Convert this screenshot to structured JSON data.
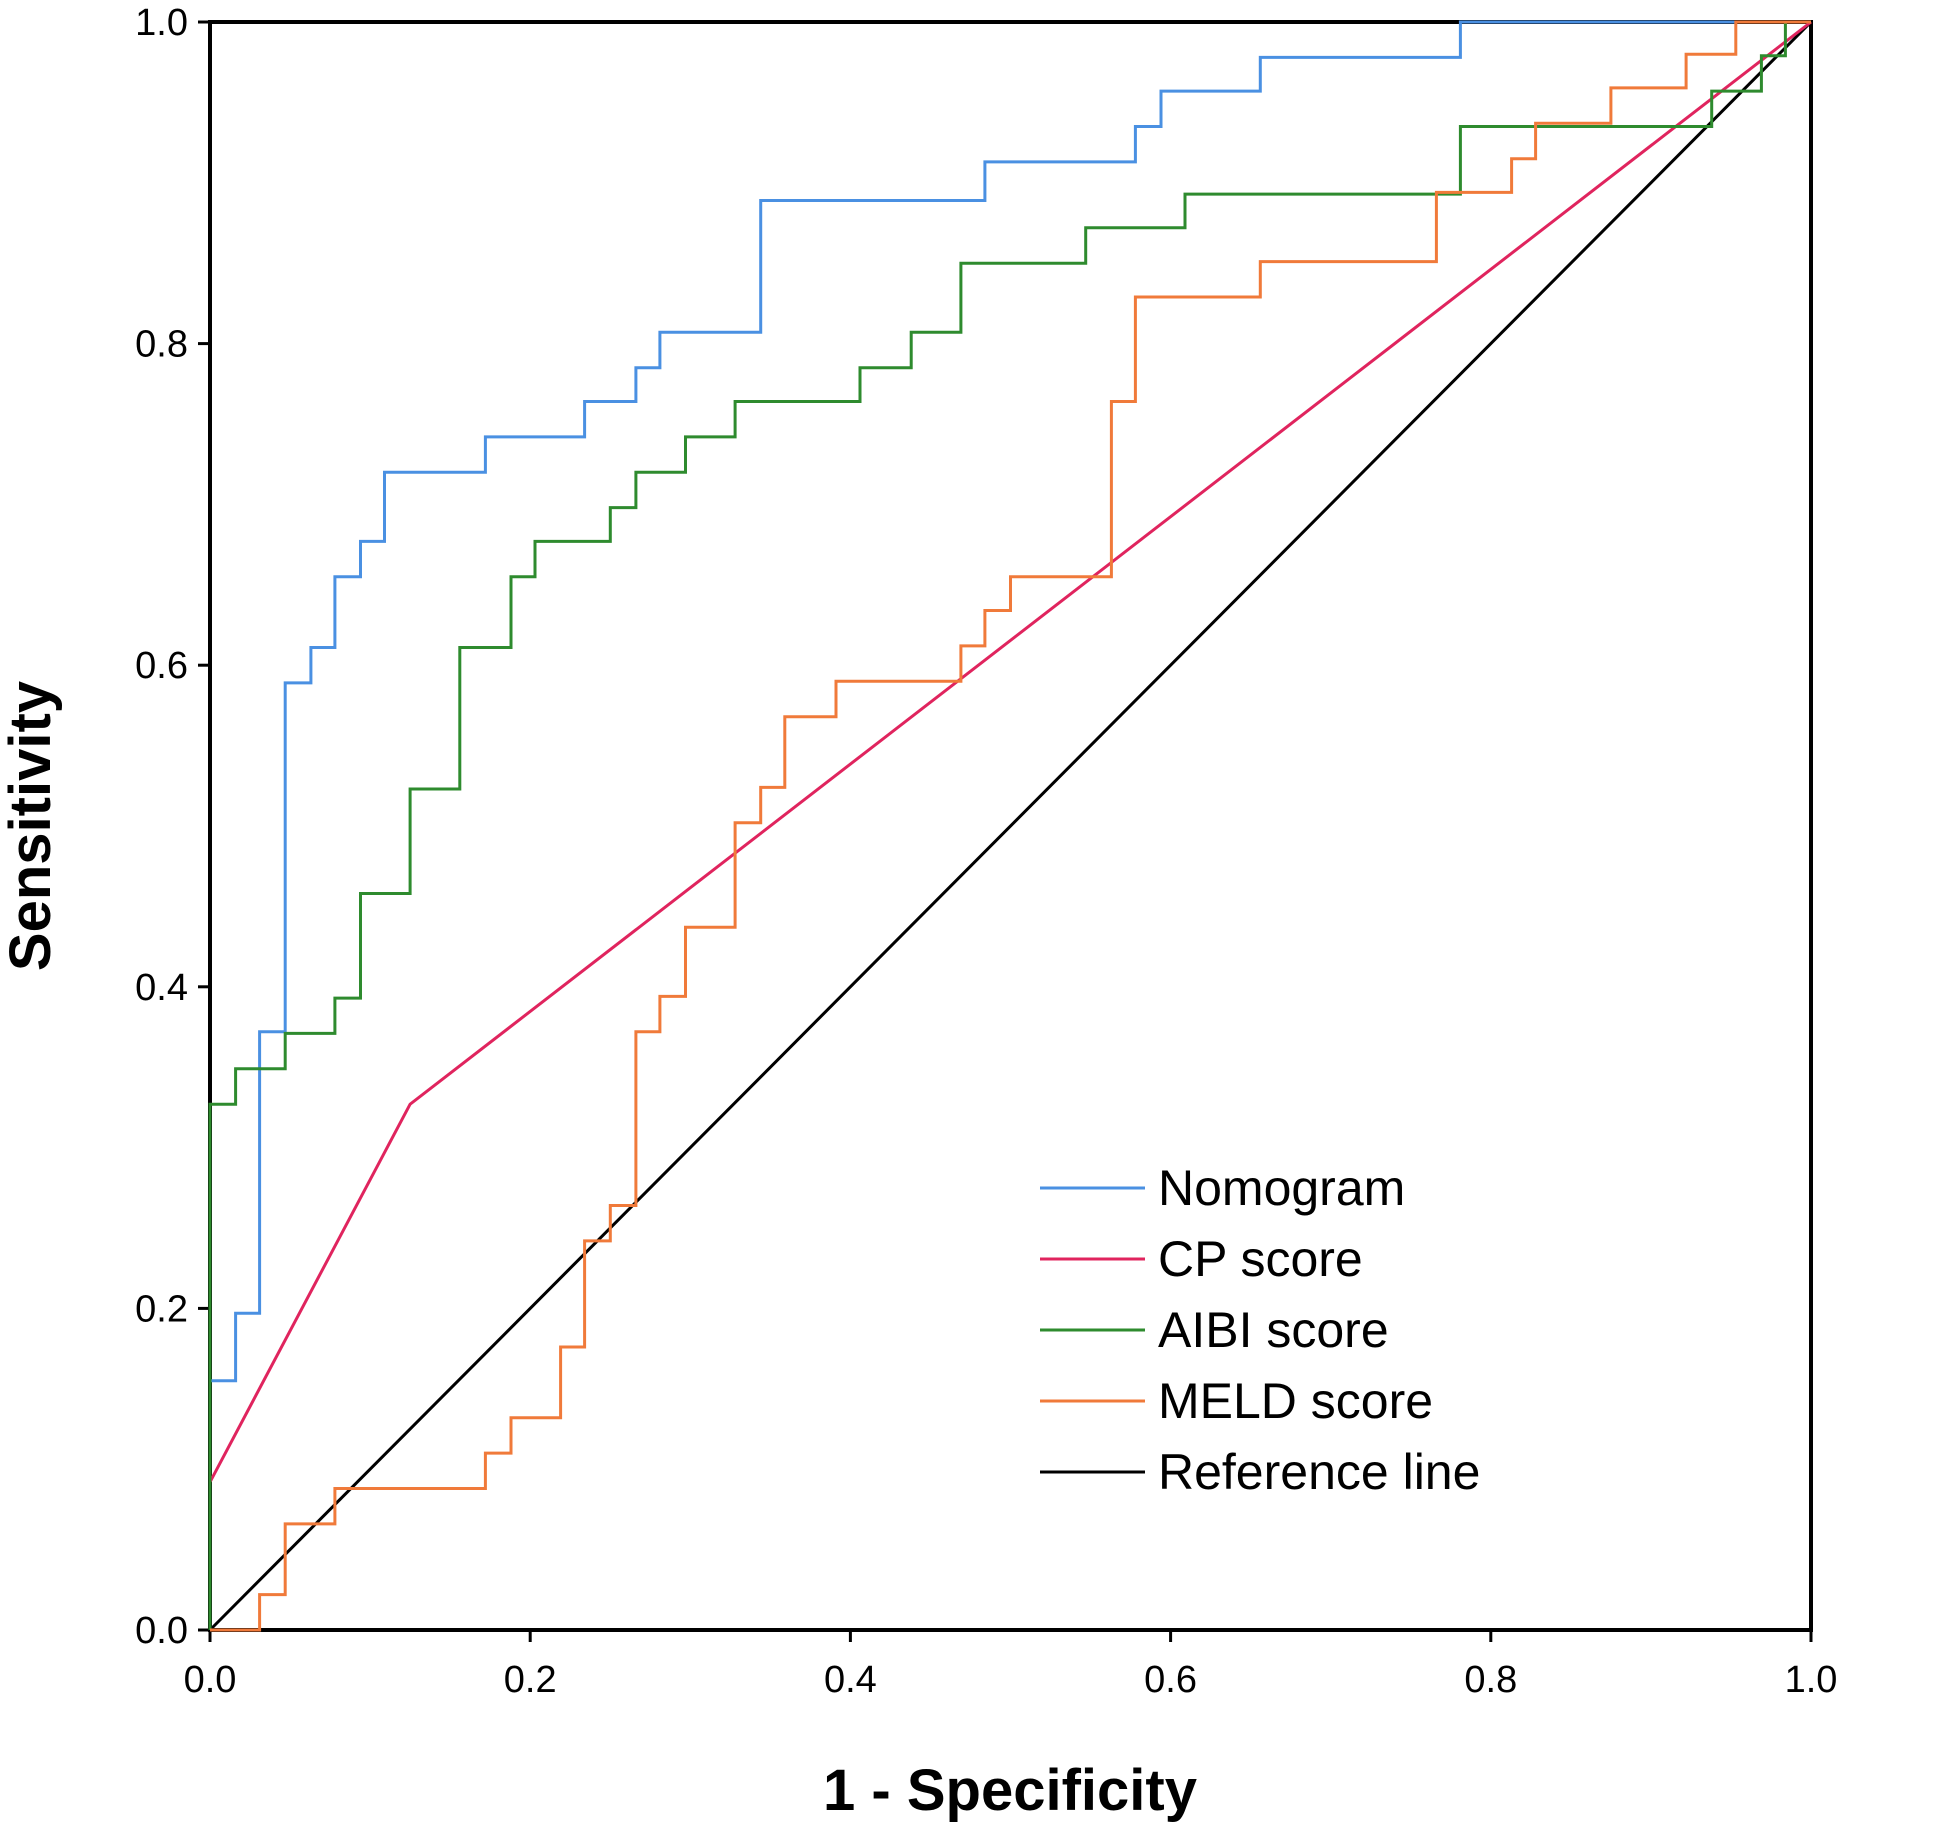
{
  "chart_data": {
    "type": "line",
    "title": "",
    "xlabel": "1 - Specificity",
    "ylabel": "Sensitivity",
    "xlim": [
      0,
      1
    ],
    "ylim": [
      0,
      1
    ],
    "xticks": [
      "0.0",
      "0.2",
      "0.4",
      "0.6",
      "0.8",
      "1.0"
    ],
    "yticks": [
      "0.0",
      "0.2",
      "0.4",
      "0.6",
      "0.8",
      "1.0"
    ],
    "grid": false,
    "legend_position": "bottom-right",
    "series": [
      {
        "name": "Nomogram",
        "color": "#4a90e2",
        "points": [
          [
            0,
            0
          ],
          [
            0,
            0.155
          ],
          [
            0.016,
            0.155
          ],
          [
            0.016,
            0.197
          ],
          [
            0.031,
            0.197
          ],
          [
            0.031,
            0.372
          ],
          [
            0.047,
            0.372
          ],
          [
            0.047,
            0.589
          ],
          [
            0.063,
            0.589
          ],
          [
            0.063,
            0.611
          ],
          [
            0.078,
            0.611
          ],
          [
            0.078,
            0.655
          ],
          [
            0.094,
            0.655
          ],
          [
            0.094,
            0.677
          ],
          [
            0.109,
            0.677
          ],
          [
            0.109,
            0.72
          ],
          [
            0.172,
            0.72
          ],
          [
            0.172,
            0.742
          ],
          [
            0.234,
            0.742
          ],
          [
            0.234,
            0.764
          ],
          [
            0.266,
            0.764
          ],
          [
            0.266,
            0.785
          ],
          [
            0.281,
            0.785
          ],
          [
            0.281,
            0.807
          ],
          [
            0.344,
            0.807
          ],
          [
            0.344,
            0.889
          ],
          [
            0.484,
            0.889
          ],
          [
            0.484,
            0.913
          ],
          [
            0.578,
            0.913
          ],
          [
            0.578,
            0.935
          ],
          [
            0.594,
            0.935
          ],
          [
            0.594,
            0.957
          ],
          [
            0.656,
            0.957
          ],
          [
            0.656,
            0.978
          ],
          [
            0.781,
            0.978
          ],
          [
            0.781,
            1.0
          ],
          [
            1.0,
            1.0
          ]
        ]
      },
      {
        "name": "CP score",
        "color": "#e0245e",
        "points": [
          [
            0,
            0
          ],
          [
            0,
            0.092
          ],
          [
            0.125,
            0.327
          ],
          [
            1.0,
            1.0
          ]
        ]
      },
      {
        "name": "AIBI score",
        "color": "#2e8b2e",
        "points": [
          [
            0,
            0
          ],
          [
            0,
            0.327
          ],
          [
            0.016,
            0.327
          ],
          [
            0.016,
            0.349
          ],
          [
            0.047,
            0.349
          ],
          [
            0.047,
            0.371
          ],
          [
            0.078,
            0.371
          ],
          [
            0.078,
            0.393
          ],
          [
            0.094,
            0.393
          ],
          [
            0.094,
            0.458
          ],
          [
            0.125,
            0.458
          ],
          [
            0.125,
            0.523
          ],
          [
            0.156,
            0.523
          ],
          [
            0.156,
            0.611
          ],
          [
            0.188,
            0.611
          ],
          [
            0.188,
            0.655
          ],
          [
            0.203,
            0.655
          ],
          [
            0.203,
            0.677
          ],
          [
            0.25,
            0.677
          ],
          [
            0.25,
            0.698
          ],
          [
            0.266,
            0.698
          ],
          [
            0.266,
            0.72
          ],
          [
            0.297,
            0.72
          ],
          [
            0.297,
            0.742
          ],
          [
            0.328,
            0.742
          ],
          [
            0.328,
            0.764
          ],
          [
            0.406,
            0.764
          ],
          [
            0.406,
            0.785
          ],
          [
            0.438,
            0.785
          ],
          [
            0.438,
            0.807
          ],
          [
            0.469,
            0.807
          ],
          [
            0.469,
            0.85
          ],
          [
            0.547,
            0.85
          ],
          [
            0.547,
            0.872
          ],
          [
            0.609,
            0.872
          ],
          [
            0.609,
            0.893
          ],
          [
            0.781,
            0.893
          ],
          [
            0.781,
            0.935
          ],
          [
            0.938,
            0.935
          ],
          [
            0.938,
            0.957
          ],
          [
            0.969,
            0.957
          ],
          [
            0.969,
            0.979
          ],
          [
            0.984,
            0.979
          ],
          [
            0.984,
            1.0
          ],
          [
            1.0,
            1.0
          ]
        ]
      },
      {
        "name": "MELD score",
        "color": "#f07a3a",
        "points": [
          [
            0,
            0
          ],
          [
            0.031,
            0
          ],
          [
            0.031,
            0.022
          ],
          [
            0.047,
            0.022
          ],
          [
            0.047,
            0.066
          ],
          [
            0.078,
            0.066
          ],
          [
            0.078,
            0.088
          ],
          [
            0.172,
            0.088
          ],
          [
            0.172,
            0.11
          ],
          [
            0.188,
            0.11
          ],
          [
            0.188,
            0.132
          ],
          [
            0.219,
            0.132
          ],
          [
            0.219,
            0.176
          ],
          [
            0.234,
            0.176
          ],
          [
            0.234,
            0.242
          ],
          [
            0.25,
            0.242
          ],
          [
            0.25,
            0.264
          ],
          [
            0.266,
            0.264
          ],
          [
            0.266,
            0.372
          ],
          [
            0.281,
            0.372
          ],
          [
            0.281,
            0.394
          ],
          [
            0.297,
            0.394
          ],
          [
            0.297,
            0.437
          ],
          [
            0.328,
            0.437
          ],
          [
            0.328,
            0.502
          ],
          [
            0.344,
            0.502
          ],
          [
            0.344,
            0.524
          ],
          [
            0.359,
            0.524
          ],
          [
            0.359,
            0.568
          ],
          [
            0.391,
            0.568
          ],
          [
            0.391,
            0.59
          ],
          [
            0.469,
            0.59
          ],
          [
            0.469,
            0.612
          ],
          [
            0.484,
            0.612
          ],
          [
            0.484,
            0.634
          ],
          [
            0.5,
            0.634
          ],
          [
            0.5,
            0.655
          ],
          [
            0.563,
            0.655
          ],
          [
            0.563,
            0.764
          ],
          [
            0.578,
            0.764
          ],
          [
            0.578,
            0.829
          ],
          [
            0.656,
            0.829
          ],
          [
            0.656,
            0.851
          ],
          [
            0.766,
            0.851
          ],
          [
            0.766,
            0.894
          ],
          [
            0.813,
            0.894
          ],
          [
            0.813,
            0.915
          ],
          [
            0.828,
            0.915
          ],
          [
            0.828,
            0.937
          ],
          [
            0.875,
            0.937
          ],
          [
            0.875,
            0.959
          ],
          [
            0.922,
            0.959
          ],
          [
            0.922,
            0.98
          ],
          [
            0.953,
            0.98
          ],
          [
            0.953,
            1.0
          ],
          [
            1.0,
            1.0
          ]
        ]
      },
      {
        "name": "Reference line",
        "color": "#000000",
        "points": [
          [
            0,
            0
          ],
          [
            1,
            1
          ]
        ]
      }
    ]
  }
}
